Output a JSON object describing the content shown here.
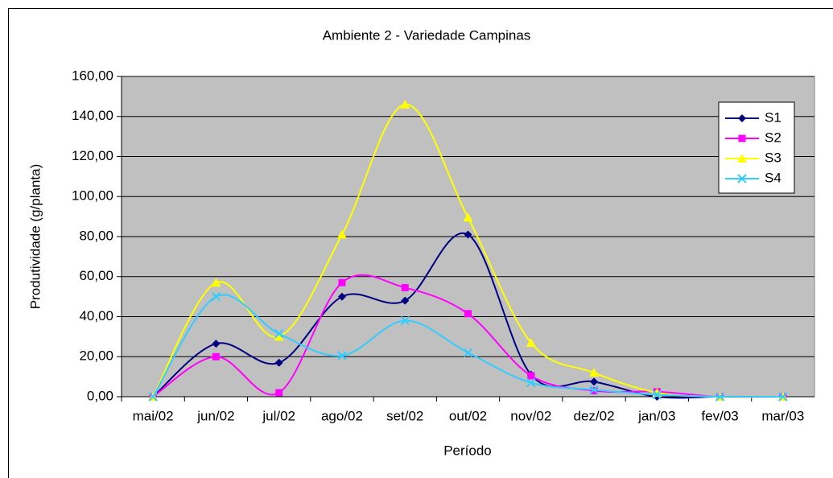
{
  "chart_data": {
    "type": "line",
    "title": "Ambiente 2 - Variedade Campinas",
    "x_label": "Período",
    "y_label": "Produtividade (g/planta)",
    "categories": [
      "mai/02",
      "jun/02",
      "jul/02",
      "ago/02",
      "set/02",
      "out/02",
      "nov/02",
      "dez/02",
      "jan/03",
      "fev/03",
      "mar/03"
    ],
    "series": [
      {
        "name": "S1",
        "color": "#000080",
        "marker": "diamond",
        "values": [
          0,
          26.5,
          17,
          50,
          48,
          81,
          11,
          7.5,
          0,
          0,
          0
        ]
      },
      {
        "name": "S2",
        "color": "#ff00ff",
        "marker": "square",
        "values": [
          0,
          20,
          2,
          57,
          54.5,
          41.5,
          10.5,
          3,
          2.5,
          0,
          0
        ]
      },
      {
        "name": "S3",
        "color": "#ffff00",
        "marker": "triangle",
        "values": [
          0,
          57,
          30,
          81,
          146,
          89.5,
          27,
          12,
          2,
          0,
          0
        ]
      },
      {
        "name": "S4",
        "color": "#33ccff",
        "marker": "x",
        "values": [
          0,
          50,
          31.5,
          20.5,
          38,
          22,
          7,
          3.5,
          1,
          0,
          0
        ]
      }
    ],
    "ylim": [
      0,
      160
    ],
    "yticks": [
      {
        "value": 0,
        "label": "0,00"
      },
      {
        "value": 20,
        "label": "20,00"
      },
      {
        "value": 40,
        "label": "40,00"
      },
      {
        "value": 60,
        "label": "60,00"
      },
      {
        "value": 80,
        "label": "80,00"
      },
      {
        "value": 100,
        "label": "100,00"
      },
      {
        "value": 120,
        "label": "120,00"
      },
      {
        "value": 140,
        "label": "140,00"
      },
      {
        "value": 160,
        "label": "160,00"
      }
    ],
    "grid": true,
    "smooth": true,
    "legend": "upper right"
  }
}
